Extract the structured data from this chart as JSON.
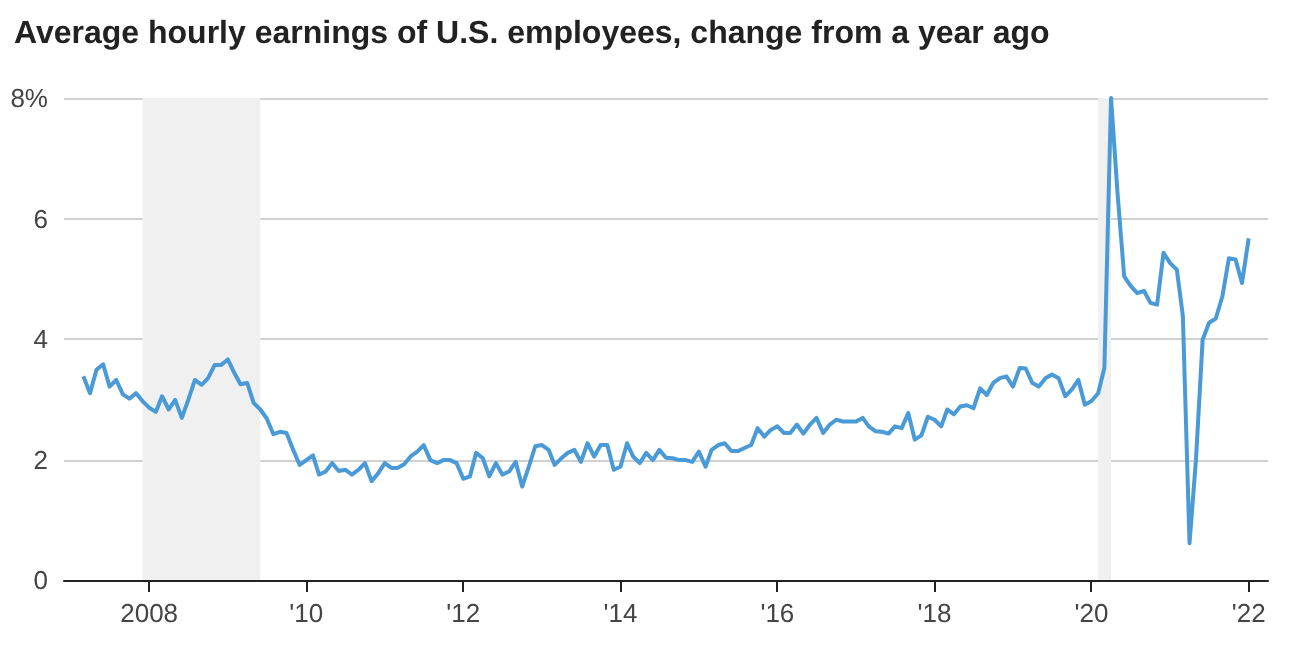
{
  "chart_data": {
    "type": "line",
    "title": "Average hourly earnings of U.S. employees, change from a year ago",
    "x": [
      "2007-03",
      "2007-04",
      "2007-05",
      "2007-06",
      "2007-07",
      "2007-08",
      "2007-09",
      "2007-10",
      "2007-11",
      "2007-12",
      "2008-01",
      "2008-02",
      "2008-03",
      "2008-04",
      "2008-05",
      "2008-06",
      "2008-07",
      "2008-08",
      "2008-09",
      "2008-10",
      "2008-11",
      "2008-12",
      "2009-01",
      "2009-02",
      "2009-03",
      "2009-04",
      "2009-05",
      "2009-06",
      "2009-07",
      "2009-08",
      "2009-09",
      "2009-10",
      "2009-11",
      "2009-12",
      "2010-01",
      "2010-02",
      "2010-03",
      "2010-04",
      "2010-05",
      "2010-06",
      "2010-07",
      "2010-08",
      "2010-09",
      "2010-10",
      "2010-11",
      "2010-12",
      "2011-01",
      "2011-02",
      "2011-03",
      "2011-04",
      "2011-05",
      "2011-06",
      "2011-07",
      "2011-08",
      "2011-09",
      "2011-10",
      "2011-11",
      "2011-12",
      "2012-01",
      "2012-02",
      "2012-03",
      "2012-04",
      "2012-05",
      "2012-06",
      "2012-07",
      "2012-08",
      "2012-09",
      "2012-10",
      "2012-11",
      "2012-12",
      "2013-01",
      "2013-02",
      "2013-03",
      "2013-04",
      "2013-05",
      "2013-06",
      "2013-07",
      "2013-08",
      "2013-09",
      "2013-10",
      "2013-11",
      "2013-12",
      "2014-01",
      "2014-02",
      "2014-03",
      "2014-04",
      "2014-05",
      "2014-06",
      "2014-07",
      "2014-08",
      "2014-09",
      "2014-10",
      "2014-11",
      "2014-12",
      "2015-01",
      "2015-02",
      "2015-03",
      "2015-04",
      "2015-05",
      "2015-06",
      "2015-07",
      "2015-08",
      "2015-09",
      "2015-10",
      "2015-11",
      "2015-12",
      "2016-01",
      "2016-02",
      "2016-03",
      "2016-04",
      "2016-05",
      "2016-06",
      "2016-07",
      "2016-08",
      "2016-09",
      "2016-10",
      "2016-11",
      "2016-12",
      "2017-01",
      "2017-02",
      "2017-03",
      "2017-04",
      "2017-05",
      "2017-06",
      "2017-07",
      "2017-08",
      "2017-09",
      "2017-10",
      "2017-11",
      "2017-12",
      "2018-01",
      "2018-02",
      "2018-03",
      "2018-04",
      "2018-05",
      "2018-06",
      "2018-07",
      "2018-08",
      "2018-09",
      "2018-10",
      "2018-11",
      "2018-12",
      "2019-01",
      "2019-02",
      "2019-03",
      "2019-04",
      "2019-05",
      "2019-06",
      "2019-07",
      "2019-08",
      "2019-09",
      "2019-10",
      "2019-11",
      "2019-12",
      "2020-01",
      "2020-02",
      "2020-03",
      "2020-04",
      "2020-05",
      "2020-06",
      "2020-07",
      "2020-08",
      "2020-09",
      "2020-10",
      "2020-11",
      "2020-12",
      "2021-01",
      "2021-02",
      "2021-03",
      "2021-04",
      "2021-05",
      "2021-06",
      "2021-07",
      "2021-08",
      "2021-09",
      "2021-10",
      "2021-11",
      "2021-12",
      "2022-01"
    ],
    "series": [
      {
        "color": "#4a9ad8",
        "values": [
          3.38,
          3.1,
          3.49,
          3.58,
          3.21,
          3.32,
          3.08,
          3.01,
          3.1,
          2.97,
          2.86,
          2.79,
          3.05,
          2.83,
          2.99,
          2.69,
          2.99,
          3.32,
          3.24,
          3.35,
          3.57,
          3.57,
          3.66,
          3.43,
          3.25,
          3.27,
          2.94,
          2.83,
          2.68,
          2.42,
          2.46,
          2.44,
          2.16,
          1.91,
          1.99,
          2.07,
          1.75,
          1.8,
          1.94,
          1.81,
          1.83,
          1.75,
          1.83,
          1.94,
          1.64,
          1.77,
          1.94,
          1.86,
          1.86,
          1.92,
          2.05,
          2.13,
          2.24,
          1.99,
          1.94,
          1.99,
          1.99,
          1.94,
          1.68,
          1.72,
          2.11,
          2.02,
          1.72,
          1.94,
          1.75,
          1.8,
          1.96,
          1.55,
          1.88,
          2.22,
          2.24,
          2.16,
          1.91,
          2.02,
          2.11,
          2.16,
          1.96,
          2.27,
          2.05,
          2.24,
          2.24,
          1.83,
          1.88,
          2.27,
          2.05,
          1.94,
          2.11,
          1.99,
          2.16,
          2.03,
          2.02,
          1.99,
          1.99,
          1.96,
          2.13,
          1.88,
          2.16,
          2.24,
          2.27,
          2.14,
          2.14,
          2.19,
          2.24,
          2.52,
          2.38,
          2.49,
          2.55,
          2.44,
          2.44,
          2.58,
          2.43,
          2.58,
          2.69,
          2.44,
          2.58,
          2.66,
          2.63,
          2.63,
          2.63,
          2.69,
          2.55,
          2.47,
          2.46,
          2.43,
          2.55,
          2.52,
          2.77,
          2.33,
          2.4,
          2.71,
          2.66,
          2.55,
          2.83,
          2.75,
          2.88,
          2.9,
          2.85,
          3.18,
          3.07,
          3.27,
          3.35,
          3.38,
          3.21,
          3.52,
          3.51,
          3.27,
          3.21,
          3.35,
          3.41,
          3.35,
          3.05,
          3.16,
          3.32,
          2.91,
          2.97,
          3.1,
          3.52,
          8.0,
          6.43,
          5.04,
          4.88,
          4.76,
          4.8,
          4.6,
          4.57,
          5.43,
          5.26,
          5.15,
          4.38,
          0.61,
          2.0,
          3.99,
          4.27,
          4.34,
          4.71,
          5.34,
          5.32,
          4.93,
          5.67
        ]
      }
    ],
    "xlim": [
      "2006-12",
      "2022-04"
    ],
    "xticks": [
      {
        "value": "2008",
        "label": "2008"
      },
      {
        "value": "2010",
        "label": "'10"
      },
      {
        "value": "2012",
        "label": "'12"
      },
      {
        "value": "2014",
        "label": "'14"
      },
      {
        "value": "2016",
        "label": "'16"
      },
      {
        "value": "2018",
        "label": "'18"
      },
      {
        "value": "2020",
        "label": "'20"
      },
      {
        "value": "2022",
        "label": "'22"
      }
    ],
    "ylim": [
      0,
      8
    ],
    "yticks": [
      0,
      2,
      4,
      6,
      {
        "value": 8,
        "label": "8%"
      }
    ],
    "grid": "y",
    "bands": [
      {
        "axis": "x",
        "from": "2007-12",
        "to": "2009-06",
        "color": "#f0f0f0"
      },
      {
        "axis": "x",
        "from": "2020-02",
        "to": "2020-04",
        "color": "#f0f0f0"
      }
    ]
  }
}
